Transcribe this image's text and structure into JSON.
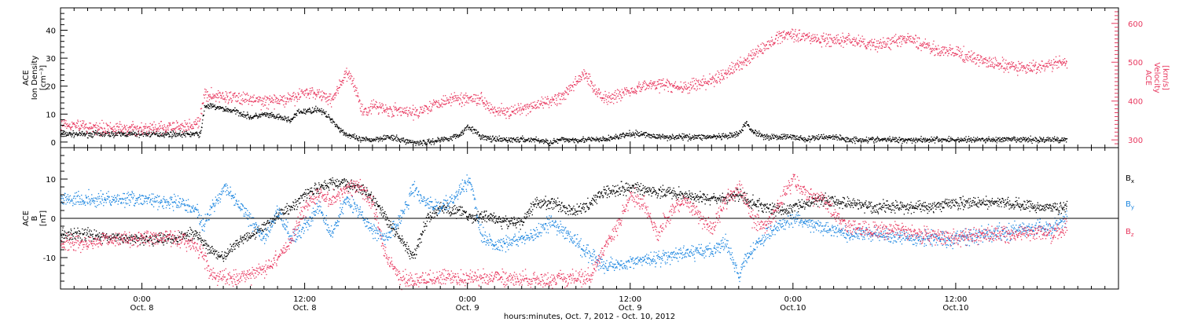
{
  "colors": {
    "black": "#000000",
    "red": "#e8385f",
    "blue": "#1c86e0"
  },
  "chart_data": [
    {
      "type": "scatter",
      "title": "",
      "xlabel": "hours:minutes, Oct. 7, 2012 - Oct. 10, 2012",
      "x_units": "hours since 2012-10-07 00:00 UT",
      "x_ticks": [
        {
          "t": 24,
          "time": "0:00",
          "day": "Oct. 8"
        },
        {
          "t": 36,
          "time": "12:00",
          "day": "Oct. 8"
        },
        {
          "t": 48,
          "time": "0:00",
          "day": "Oct. 9"
        },
        {
          "t": 60,
          "time": "12:00",
          "day": "Oct. 9"
        },
        {
          "t": 72,
          "time": "0:00",
          "day": "Oct.10"
        },
        {
          "t": 84,
          "time": "12:00",
          "day": "Oct.10"
        }
      ],
      "xlim": [
        18,
        96
      ],
      "ylabel_left": [
        "ACE",
        "Ion Density",
        "[cm⁻³]"
      ],
      "ylim_left": [
        -2,
        48
      ],
      "yticks_left": [
        0,
        10,
        20,
        30,
        40
      ],
      "ylabel_right": [
        "ACE",
        "Velocity",
        "[km/s]"
      ],
      "ylim_right": [
        280,
        640
      ],
      "yticks_right": [
        300,
        400,
        500,
        600
      ],
      "series": [
        {
          "axis": "left",
          "color": "black",
          "t": [
            18,
            20,
            22,
            23,
            24,
            25,
            26,
            27,
            28.3,
            28.6,
            29,
            30,
            31,
            32,
            33,
            34,
            35,
            35.5,
            36,
            37,
            37.5,
            38,
            38.5,
            39,
            39.5,
            40,
            41,
            42,
            43,
            44,
            44.5,
            45,
            46,
            47,
            47.5,
            48,
            49,
            50,
            51,
            52,
            53,
            54,
            55,
            56,
            57,
            58,
            59,
            60,
            61,
            62,
            63,
            64,
            65,
            66,
            67,
            68,
            68.5,
            69,
            70,
            71,
            72,
            73,
            74,
            75,
            76,
            77,
            78,
            79,
            80,
            81,
            82,
            83,
            84,
            85,
            86,
            87,
            88,
            89,
            90,
            91,
            92.2
          ],
          "values": [
            3,
            3,
            3,
            3,
            3,
            3,
            3,
            3,
            3,
            13,
            13,
            12,
            11,
            9,
            10,
            9,
            8,
            11,
            11,
            12,
            10,
            8,
            5,
            3,
            2,
            1,
            1,
            2,
            1,
            0,
            0,
            0,
            1,
            2,
            3,
            6,
            2,
            1,
            1,
            1,
            1,
            0,
            1,
            1,
            1,
            1,
            2,
            3,
            3,
            2,
            2,
            2,
            2,
            2,
            2,
            3,
            7,
            4,
            2,
            2,
            2,
            1,
            2,
            2,
            1,
            1,
            1,
            1,
            1,
            1,
            1,
            1,
            1,
            1,
            1,
            1,
            1,
            1,
            1,
            1,
            1
          ],
          "noise": 0.9
        },
        {
          "axis": "right",
          "color": "red",
          "t": [
            18,
            19,
            20,
            22,
            24,
            25,
            27,
            28.2,
            28.6,
            29,
            31,
            33,
            35,
            36,
            37,
            38,
            38.5,
            39,
            39.5,
            40,
            40.2,
            40.6,
            41,
            42,
            43,
            44,
            45,
            46,
            47,
            48,
            48.5,
            49,
            50,
            51,
            52,
            53,
            54,
            55,
            56,
            56.5,
            57,
            57.5,
            58,
            59,
            60,
            61,
            62,
            63,
            64,
            65,
            66,
            67,
            68,
            69,
            70,
            71,
            72,
            73,
            74,
            75,
            76,
            77,
            78,
            79,
            80,
            81,
            82,
            83,
            84,
            85,
            86,
            87,
            88,
            89,
            90,
            91,
            92.2
          ],
          "values": [
            345,
            340,
            335,
            330,
            330,
            330,
            335,
            345,
            420,
            415,
            410,
            400,
            405,
            425,
            420,
            405,
            440,
            470,
            455,
            400,
            380,
            375,
            390,
            380,
            375,
            370,
            385,
            400,
            408,
            408,
            410,
            405,
            378,
            372,
            378,
            390,
            400,
            412,
            450,
            470,
            455,
            425,
            410,
            415,
            430,
            440,
            445,
            440,
            435,
            445,
            455,
            470,
            495,
            520,
            540,
            570,
            575,
            565,
            560,
            555,
            560,
            550,
            545,
            550,
            560,
            555,
            540,
            530,
            525,
            515,
            505,
            495,
            490,
            485,
            490,
            495,
            500
          ],
          "noise": 14
        }
      ]
    },
    {
      "type": "scatter",
      "title": "",
      "xlabel": "hours:minutes, Oct. 7, 2012 - Oct. 10, 2012",
      "x_units": "hours since 2012-10-07 00:00 UT",
      "xlim": [
        18,
        96
      ],
      "ylabel_left": [
        "ACE",
        "B",
        "[nT]"
      ],
      "ylim": [
        -18,
        18
      ],
      "yticks": [
        -10,
        0,
        10
      ],
      "zero_line": true,
      "legend": [
        "Bx",
        "By",
        "Bz"
      ],
      "legend_placement": "right",
      "series": [
        {
          "name": "Bx",
          "color": "black",
          "t": [
            18,
            20,
            22,
            24,
            26,
            28,
            29,
            30,
            31,
            32,
            33,
            34,
            35,
            36,
            37,
            38,
            39,
            40,
            41,
            42,
            43,
            44,
            45,
            46,
            47,
            48,
            48.5,
            49,
            50,
            51,
            52,
            52.5,
            53,
            54,
            55,
            56,
            57,
            58,
            60,
            62,
            64,
            66,
            67,
            68,
            69,
            70,
            71,
            72,
            73,
            74,
            76,
            78,
            80,
            82,
            84,
            86,
            88,
            90,
            92.2
          ],
          "values": [
            -4,
            -4,
            -5,
            -5,
            -5,
            -4,
            -8,
            -10,
            -6,
            -4,
            -2,
            1,
            3,
            6,
            8,
            9,
            9,
            8,
            5,
            0,
            -5,
            -10,
            0,
            3,
            2,
            1,
            0,
            1,
            0,
            -1,
            -1,
            2,
            4,
            4,
            3,
            2,
            4,
            7,
            8,
            7,
            6,
            5,
            5,
            6,
            4,
            3,
            2,
            3,
            4,
            5,
            4,
            3,
            3,
            3,
            4,
            4,
            4,
            3,
            3
          ],
          "noise": 1.3
        },
        {
          "name": "By",
          "color": "blue",
          "t": [
            18,
            20,
            22,
            24,
            26,
            27,
            28,
            28.5,
            29,
            30,
            31,
            32,
            33,
            34,
            35,
            36,
            37,
            38,
            39,
            40,
            41,
            42,
            43,
            44,
            45,
            46,
            47,
            47.8,
            48.2,
            49,
            50,
            51,
            52,
            53,
            54,
            55,
            56,
            57,
            58,
            60,
            62,
            64,
            66,
            67,
            68,
            68.5,
            69,
            70,
            71,
            72,
            74,
            76,
            78,
            80,
            82,
            84,
            86,
            88,
            90,
            91,
            92.2
          ],
          "values": [
            5,
            5,
            5,
            5,
            4,
            4,
            2,
            -2,
            2,
            8,
            4,
            0,
            -5,
            2,
            -5,
            -2,
            3,
            -4,
            5,
            2,
            -3,
            -5,
            0,
            8,
            4,
            3,
            5,
            9,
            9,
            -4,
            -7,
            -6,
            -5,
            -4,
            -1,
            -3,
            -6,
            -9,
            -12,
            -11,
            -10,
            -9,
            -8,
            -6,
            -14,
            -10,
            -8,
            -4,
            -2,
            0,
            -2,
            -4,
            -4,
            -5,
            -5,
            -5,
            -4,
            -3,
            -2,
            -3,
            1
          ],
          "noise": 1.6
        },
        {
          "name": "Bz",
          "color": "red",
          "t": [
            18,
            20,
            22,
            24,
            26,
            27,
            28,
            28.5,
            29,
            30,
            31,
            32,
            33,
            34,
            35,
            36,
            37,
            38,
            39,
            40,
            41,
            42,
            43,
            44,
            46,
            48,
            50,
            52,
            54,
            56,
            57,
            58,
            59,
            60,
            61,
            62,
            63,
            64,
            65,
            66,
            67,
            68,
            69,
            70,
            71,
            72,
            73,
            74,
            76,
            78,
            80,
            82,
            84,
            86,
            88,
            90,
            91,
            92.2
          ],
          "values": [
            -6,
            -6,
            -5,
            -5,
            -5,
            -5,
            -7,
            -9,
            -14,
            -15,
            -15,
            -14,
            -13,
            -10,
            -5,
            3,
            6,
            5,
            8,
            8,
            4,
            -10,
            -15,
            -16,
            -15,
            -15,
            -15,
            -15,
            -16,
            -15,
            -15,
            -8,
            -2,
            6,
            4,
            -4,
            2,
            5,
            1,
            -3,
            5,
            8,
            0,
            -2,
            4,
            10,
            6,
            5,
            -2,
            -3,
            -3,
            -4,
            -5,
            -4,
            -4,
            -3,
            -4,
            -2
          ],
          "noise": 1.8
        }
      ]
    }
  ]
}
